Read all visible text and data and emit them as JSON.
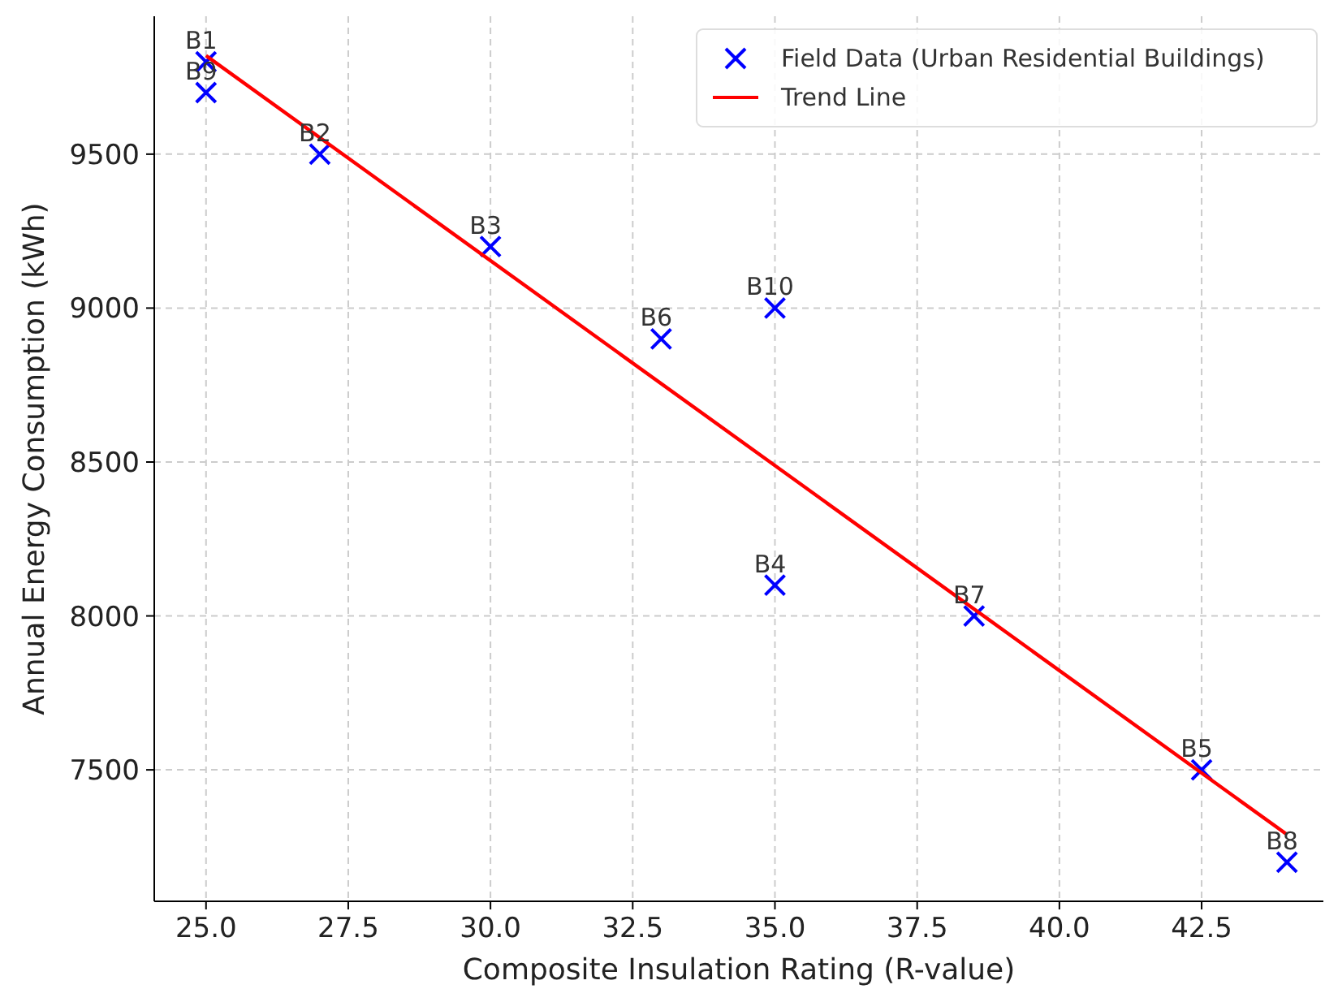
{
  "chart_data": {
    "type": "scatter",
    "xlabel": "Composite Insulation Rating (R-value)",
    "ylabel": "Annual Energy Consumption (kWh)",
    "xlim": [
      24.09,
      44.64
    ],
    "ylim": [
      7073,
      9948
    ],
    "xticks": [
      {
        "value": 25,
        "label": "25.0"
      },
      {
        "value": 27.5,
        "label": "27.5"
      },
      {
        "value": 30,
        "label": "30.0"
      },
      {
        "value": 32.5,
        "label": "32.5"
      },
      {
        "value": 35,
        "label": "35.0"
      },
      {
        "value": 37.5,
        "label": "37.5"
      },
      {
        "value": 40,
        "label": "40.0"
      },
      {
        "value": 42.5,
        "label": "42.5"
      }
    ],
    "yticks": [
      7500,
      8000,
      8500,
      9000,
      9500
    ],
    "grid": true,
    "legend": "top right",
    "series": [
      {
        "name": "Field Data (Urban Residential Buildings)",
        "color": "#0000ff",
        "marker": "cross",
        "x": [
          25,
          27,
          30,
          35,
          42.5,
          33,
          38.5,
          44,
          25,
          35
        ],
        "values": [
          9800,
          9500,
          9200,
          8100,
          7500,
          8900,
          8000,
          7200,
          9700,
          9000
        ]
      },
      {
        "name": "Trend Line",
        "color": "#ff0000",
        "type": "line",
        "line_style": "solid",
        "x": [
          25,
          44
        ],
        "values": [
          9820,
          7290
        ]
      }
    ],
    "annotations": [
      {
        "text": "B1",
        "x": 25,
        "y": 9800
      },
      {
        "text": "B2",
        "x": 27,
        "y": 9500
      },
      {
        "text": "B3",
        "x": 30,
        "y": 9200
      },
      {
        "text": "B4",
        "x": 35,
        "y": 8100
      },
      {
        "text": "B5",
        "x": 42.5,
        "y": 7500
      },
      {
        "text": "B6",
        "x": 33,
        "y": 8900
      },
      {
        "text": "B7",
        "x": 38.5,
        "y": 8000
      },
      {
        "text": "B8",
        "x": 44,
        "y": 7200
      },
      {
        "text": "B9",
        "x": 25,
        "y": 9700
      },
      {
        "text": "B10",
        "x": 35,
        "y": 9000
      }
    ]
  }
}
